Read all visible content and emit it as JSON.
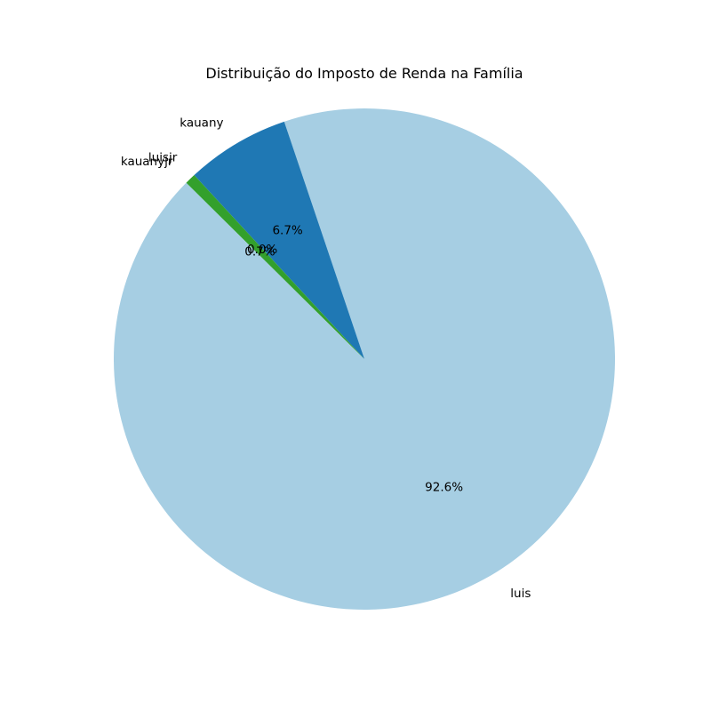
{
  "chart_data": {
    "type": "pie",
    "title": "Distribuição do Imposto de Renda na Família",
    "slices": [
      {
        "label": "luis",
        "value": 92.6,
        "pct_label": "92.6%",
        "color": "#a6cee3"
      },
      {
        "label": "kauany",
        "value": 6.7,
        "pct_label": "6.7%",
        "color": "#1f78b4"
      },
      {
        "label": "luisjr",
        "value": 0.0,
        "pct_label": "0.0%",
        "color": "#b2df8a"
      },
      {
        "label": "kauanyjr",
        "value": 0.7,
        "pct_label": "0.7%",
        "color": "#33a02c"
      }
    ]
  }
}
